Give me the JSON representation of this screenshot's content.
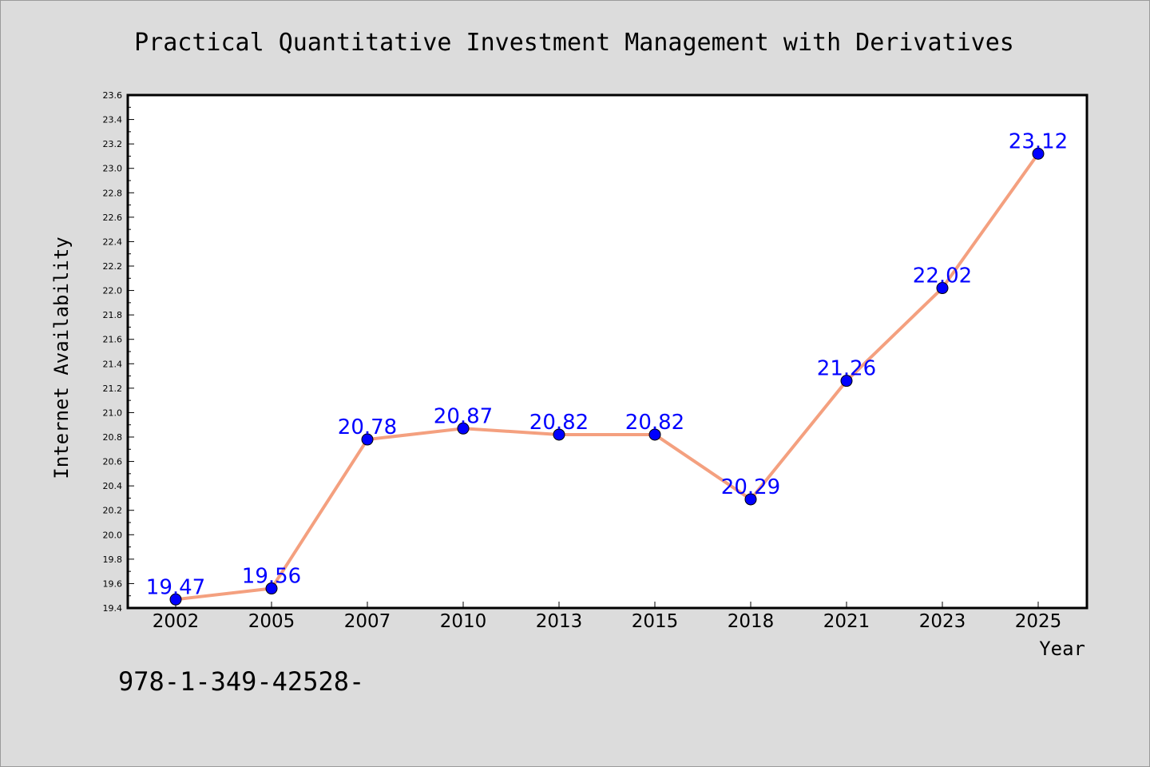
{
  "chart_data": {
    "type": "line",
    "title": "Practical Quantitative Investment Management with Derivatives",
    "xlabel": "Year",
    "ylabel": "Internet Availability",
    "categories": [
      "2002",
      "2005",
      "2007",
      "2010",
      "2013",
      "2015",
      "2018",
      "2021",
      "2023",
      "2025"
    ],
    "series": [
      {
        "values": [
          19.47,
          19.56,
          20.78,
          20.87,
          20.82,
          20.82,
          20.29,
          21.26,
          22.02,
          23.12
        ],
        "labels": [
          "19.47",
          "19.56",
          "20.78",
          "20.87",
          "20.82",
          "20.82",
          "20.29",
          "21.26",
          "22.02",
          "23.12"
        ]
      }
    ],
    "ylim": [
      19.4,
      23.6
    ],
    "yticks": [
      "19.4",
      "19.6",
      "19.8",
      "20.0",
      "20.2",
      "20.4",
      "20.6",
      "20.8",
      "21.0",
      "21.2",
      "21.4",
      "21.6",
      "21.8",
      "22.0",
      "22.2",
      "22.4",
      "22.6",
      "22.8",
      "23.0",
      "23.2",
      "23.4",
      "23.6"
    ],
    "grid": false,
    "line_color": "#f4a07f",
    "marker_color": "#0000ff",
    "label_color": "#0000ff",
    "plot_background": "#ffffff",
    "page_background": "#dcdcdc"
  },
  "footer_text": "978-1-349-42528-"
}
